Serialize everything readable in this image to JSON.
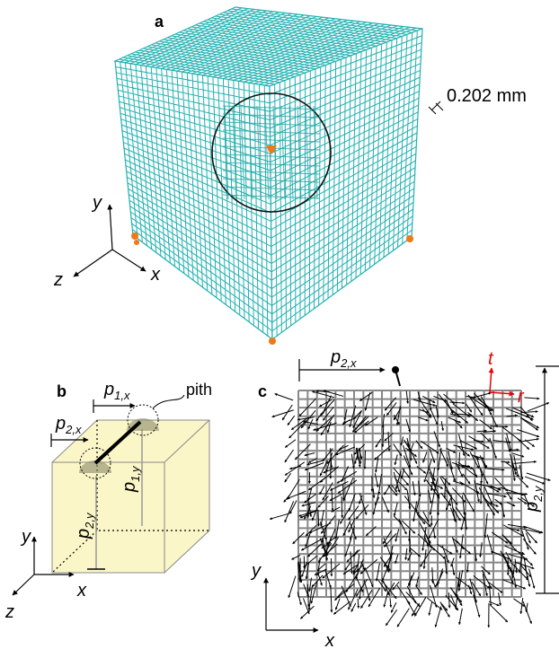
{
  "panel_a": {
    "label": "a",
    "mesh_size": "0.202 mm",
    "axis_y": "y",
    "axis_z": "z",
    "axis_x": "x"
  },
  "panel_b": {
    "label": "b",
    "p1x": {
      "base": "p",
      "sub": "1,x"
    },
    "pith": "pith",
    "p2x": {
      "base": "p",
      "sub": "2,x"
    },
    "p1y": {
      "base": "p",
      "sub": "1,y"
    },
    "p2y": {
      "base": "p",
      "sub": "2,y"
    },
    "axis_y": "y",
    "axis_z": "z",
    "axis_x": "x"
  },
  "panel_c": {
    "label": "c",
    "p2x": {
      "base": "p",
      "sub": "2,x"
    },
    "t": "t",
    "r": "r",
    "p2y": {
      "base": "p",
      "sub": "2,y"
    },
    "axis_y": "y",
    "axis_x": "x"
  }
}
